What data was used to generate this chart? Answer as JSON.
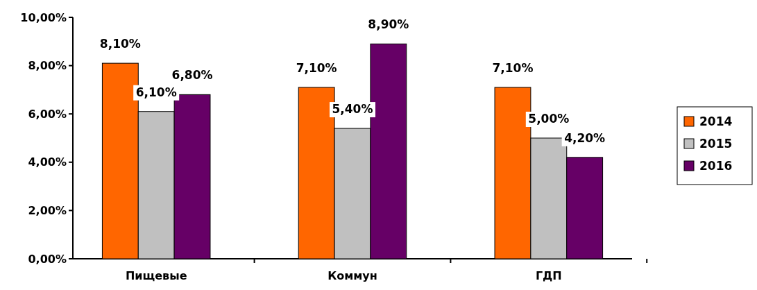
{
  "chart_data": {
    "type": "bar",
    "categories": [
      "Пищевые",
      "Коммун",
      "ГДП"
    ],
    "series": [
      {
        "name": "2014",
        "color": "#ff6600",
        "values": [
          8.1,
          7.1,
          7.1
        ],
        "value_labels": [
          "8,10%",
          "7,10%",
          "7,10%"
        ]
      },
      {
        "name": "2015",
        "color": "#c0c0c0",
        "values": [
          6.1,
          5.4,
          5.0
        ],
        "value_labels": [
          "6,10%",
          "5,40%",
          "5,00%"
        ]
      },
      {
        "name": "2016",
        "color": "#660066",
        "values": [
          6.8,
          8.9,
          4.2
        ],
        "value_labels": [
          "6,80%",
          "8,90%",
          "4,20%"
        ]
      }
    ],
    "ylim": [
      0,
      10
    ],
    "yticks": [
      {
        "value": 0,
        "label": "0,00%"
      },
      {
        "value": 2,
        "label": "2,00%"
      },
      {
        "value": 4,
        "label": "4,00%"
      },
      {
        "value": 6,
        "label": "6,00%"
      },
      {
        "value": 8,
        "label": "8,00%"
      },
      {
        "value": 10,
        "label": "10,00%"
      }
    ],
    "grid": false,
    "legend": "right"
  }
}
